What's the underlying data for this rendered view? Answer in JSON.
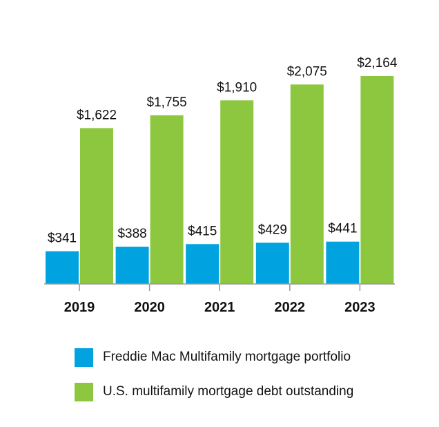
{
  "chart_data": {
    "type": "bar",
    "categories": [
      "2019",
      "2020",
      "2021",
      "2022",
      "2023"
    ],
    "series": [
      {
        "name": "Freddie Mac Multifamily mortgage portfolio",
        "values": [
          341,
          388,
          415,
          429,
          441
        ],
        "labels": [
          "$341",
          "$388",
          "$415",
          "$429",
          "$441"
        ],
        "color": "#00a3e0"
      },
      {
        "name": "U.S. multifamily mortgage debt outstanding",
        "values": [
          1622,
          1755,
          1910,
          2075,
          2164
        ],
        "labels": [
          "$1,622",
          "$1,755",
          "$1,910",
          "$2,075",
          "$2,164"
        ],
        "color": "#8dc63f"
      }
    ],
    "ylim": [
      0,
      2250
    ],
    "grid": false,
    "legend_position": "bottom"
  }
}
